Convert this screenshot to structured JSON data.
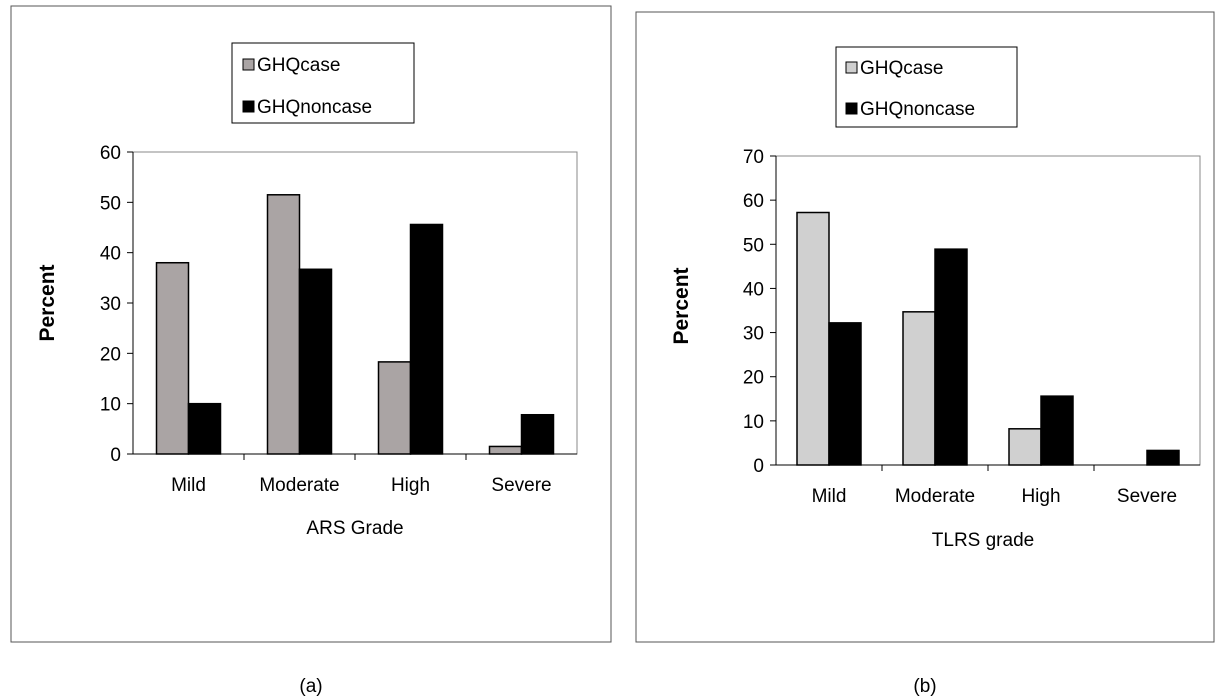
{
  "chart_data": [
    {
      "type": "bar",
      "caption": "(a)",
      "categories": [
        "Mild",
        "Moderate",
        "High",
        "Severe"
      ],
      "series": [
        {
          "name": "GHQcase",
          "values": [
            38,
            51.5,
            18.3,
            1.5
          ],
          "color": "#aaa4a4"
        },
        {
          "name": "GHQnoncase",
          "values": [
            10,
            36.7,
            45.6,
            7.8
          ],
          "color": "#000000"
        }
      ],
      "xlabel": "ARS Grade",
      "ylabel": "Percent",
      "ylim": [
        0,
        60
      ],
      "yticks": [
        0,
        10,
        20,
        30,
        40,
        50,
        60
      ],
      "legend": "top-center",
      "grid": false
    },
    {
      "type": "bar",
      "caption": "(b)",
      "categories": [
        "Mild",
        "Moderate",
        "High",
        "Severe"
      ],
      "series": [
        {
          "name": "GHQcase",
          "values": [
            57.2,
            34.7,
            8.2,
            0
          ],
          "color": "#d0d0d0"
        },
        {
          "name": "GHQnoncase",
          "values": [
            32.2,
            48.9,
            15.6,
            3.3
          ],
          "color": "#000000"
        }
      ],
      "xlabel": "TLRS grade",
      "ylabel": "Percent",
      "ylim": [
        0,
        70
      ],
      "yticks": [
        0,
        10,
        20,
        30,
        40,
        50,
        60,
        70
      ],
      "legend": "top-center",
      "grid": false
    }
  ]
}
